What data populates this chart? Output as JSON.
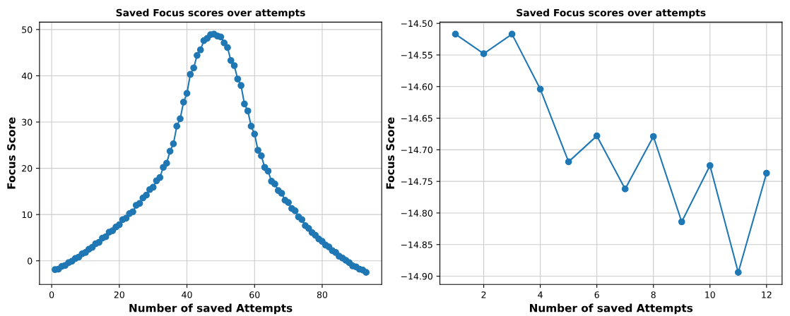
{
  "chart_data": [
    {
      "type": "line",
      "title": "Saved Focus scores over attempts",
      "xlabel": "Number of saved Attempts",
      "ylabel": "Focus Score",
      "x": [
        1,
        2,
        3,
        4,
        5,
        6,
        7,
        8,
        9,
        10,
        11,
        12,
        13,
        14,
        15,
        16,
        17,
        18,
        19,
        20,
        21,
        22,
        23,
        24,
        25,
        26,
        27,
        28,
        29,
        30,
        31,
        32,
        33,
        34,
        35,
        36,
        37,
        38,
        39,
        40,
        41,
        42,
        43,
        44,
        45,
        46,
        47,
        48,
        49,
        50,
        51,
        52,
        53,
        54,
        55,
        56,
        57,
        58,
        59,
        60,
        61,
        62,
        63,
        64,
        65,
        66,
        67,
        68,
        69,
        70,
        71,
        72,
        73,
        74,
        75,
        76,
        77,
        78,
        79,
        80,
        81,
        82,
        83,
        84,
        85,
        86,
        87,
        88,
        89,
        90,
        91,
        92,
        93
      ],
      "series": [
        {
          "color": "#1f77b4",
          "values": [
            -1.9,
            -1.8,
            -1.2,
            -1.0,
            -0.4,
            -0.1,
            0.5,
            0.8,
            1.5,
            1.8,
            2.5,
            2.9,
            3.7,
            4.0,
            4.9,
            5.2,
            6.2,
            6.5,
            7.3,
            7.8,
            8.9,
            9.2,
            10.2,
            10.6,
            12.0,
            12.4,
            13.6,
            14.2,
            15.4,
            15.9,
            17.3,
            18.0,
            20.2,
            21.1,
            23.7,
            25.3,
            29.1,
            30.7,
            34.3,
            36.2,
            40.3,
            41.7,
            44.4,
            45.6,
            47.6,
            48.1,
            48.9,
            49.0,
            48.6,
            48.4,
            47.1,
            46.1,
            43.3,
            42.2,
            39.3,
            37.9,
            33.9,
            32.4,
            29.1,
            27.4,
            23.9,
            22.7,
            20.2,
            19.4,
            17.2,
            16.6,
            15.2,
            14.6,
            13.1,
            12.6,
            11.3,
            10.8,
            9.5,
            8.9,
            7.6,
            7.0,
            6.1,
            5.5,
            4.7,
            4.2,
            3.4,
            3.0,
            2.2,
            1.8,
            1.0,
            0.6,
            0.1,
            -0.4,
            -1.1,
            -1.3,
            -1.8,
            -2.0,
            -2.5
          ]
        }
      ],
      "xlim": [
        -3.6,
        97.6
      ],
      "ylim": [
        -5.1,
        51.6
      ],
      "xticks": [
        0,
        20,
        40,
        60,
        80
      ],
      "yticks": [
        0,
        10,
        20,
        30,
        40,
        50
      ],
      "grid": true,
      "marker": "circle",
      "line_style": "solid"
    },
    {
      "type": "line",
      "title": "Saved Focus scores over attempts",
      "xlabel": "Number of saved Attempts",
      "ylabel": "Focus Score",
      "x": [
        1,
        2,
        3,
        4,
        5,
        6,
        7,
        8,
        9,
        10,
        11,
        12
      ],
      "series": [
        {
          "color": "#1f77b4",
          "values": [
            -14.517,
            -14.548,
            -14.517,
            -14.604,
            -14.719,
            -14.678,
            -14.762,
            -14.679,
            -14.814,
            -14.725,
            -14.894,
            -14.737
          ]
        }
      ],
      "xlim": [
        0.45,
        12.55
      ],
      "ylim": [
        -14.913,
        -14.498
      ],
      "xticks": [
        2,
        4,
        6,
        8,
        10,
        12
      ],
      "yticks": [
        {
          "value": -14.5,
          "label": "−14.50"
        },
        {
          "value": -14.55,
          "label": "−14.55"
        },
        {
          "value": -14.6,
          "label": "−14.60"
        },
        {
          "value": -14.65,
          "label": "−14.65"
        },
        {
          "value": -14.7,
          "label": "−14.70"
        },
        {
          "value": -14.75,
          "label": "−14.75"
        },
        {
          "value": -14.8,
          "label": "−14.80"
        },
        {
          "value": -14.85,
          "label": "−14.85"
        },
        {
          "value": -14.9,
          "label": "−14.90"
        }
      ],
      "grid": true,
      "marker": "circle",
      "line_style": "solid"
    }
  ]
}
